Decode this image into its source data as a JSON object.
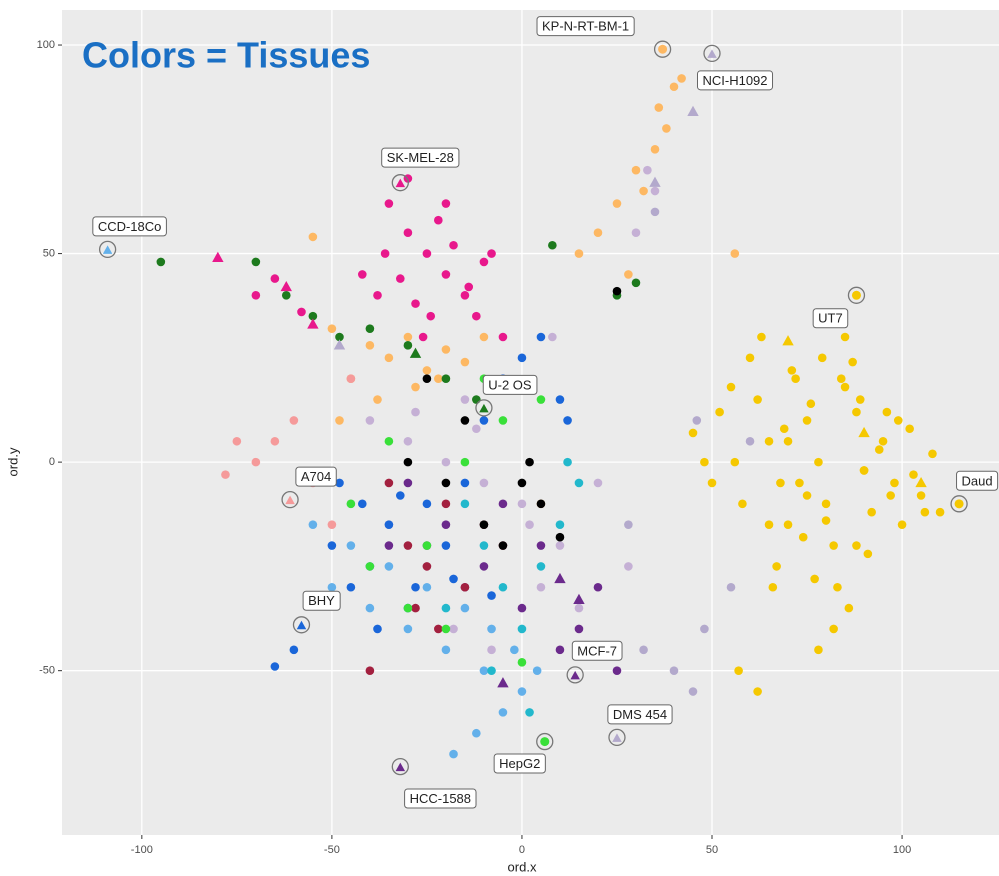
{
  "chart_data": {
    "type": "scatter",
    "title": "Colors = Tissues",
    "title_color": "#1a6fc4",
    "x_label": "ord.x",
    "y_label": "ord.y",
    "xlim": [
      -121,
      125.5
    ],
    "ylim": [
      -89.4,
      108.4
    ],
    "xticks": [
      -100,
      -50,
      0,
      50,
      100
    ],
    "yticks": [
      -50,
      0,
      50,
      100
    ],
    "grid": true,
    "series": [
      {
        "color": "#f5c800",
        "marker": "circle",
        "x": [
          60,
          62,
          65,
          68,
          70,
          72,
          75,
          78,
          80,
          82,
          85,
          88,
          90,
          92,
          95,
          98,
          100,
          102,
          105,
          108,
          110,
          45,
          48,
          50,
          52,
          55,
          58,
          63,
          67,
          71,
          74,
          77,
          79,
          83,
          86,
          89,
          91,
          94,
          97,
          99,
          103,
          106,
          70,
          73,
          76,
          80,
          84,
          88,
          66,
          69,
          82,
          85,
          78,
          87,
          57,
          62,
          90,
          96,
          81,
          75,
          56,
          65
        ],
        "values": [
          25,
          15,
          5,
          -5,
          -15,
          20,
          10,
          0,
          -10,
          -20,
          30,
          12,
          -2,
          -12,
          5,
          -5,
          -15,
          8,
          -8,
          2,
          -12,
          7,
          0,
          -5,
          12,
          18,
          -10,
          30,
          -25,
          22,
          -18,
          -28,
          25,
          -30,
          -35,
          15,
          -22,
          3,
          -8,
          10,
          -3,
          -12,
          5,
          -5,
          14,
          -14,
          20,
          -20,
          -30,
          8,
          -40,
          18,
          -45,
          24,
          -50,
          -55,
          -2,
          12,
          35,
          -8,
          0,
          -15
        ]
      },
      {
        "color": "#e8188c",
        "marker": "circle",
        "x": [
          -35,
          -30,
          -25,
          -20,
          -15,
          -10,
          -32,
          -28,
          -22,
          -18,
          -12,
          -38,
          -42,
          -26,
          -14,
          -8,
          -30,
          -20,
          -65,
          -70,
          -58,
          -5,
          -36,
          -24
        ],
        "values": [
          62,
          55,
          50,
          45,
          40,
          48,
          44,
          38,
          58,
          52,
          35,
          40,
          45,
          30,
          42,
          50,
          68,
          62,
          44,
          40,
          36,
          30,
          50,
          35
        ]
      },
      {
        "color": "#fdb863",
        "marker": "circle",
        "x": [
          -40,
          -35,
          -30,
          -25,
          -20,
          -45,
          -50,
          -28,
          -15,
          -38,
          20,
          25,
          30,
          35,
          38,
          40,
          28,
          32,
          36,
          15,
          -22,
          -55,
          -48,
          -10,
          56,
          42,
          5
        ],
        "values": [
          28,
          25,
          30,
          22,
          27,
          20,
          32,
          18,
          24,
          15,
          55,
          62,
          70,
          75,
          80,
          90,
          45,
          65,
          85,
          50,
          20,
          54,
          10,
          30,
          50,
          92,
          -10
        ]
      },
      {
        "color": "#c5b0d5",
        "marker": "circle",
        "x": [
          -40,
          -30,
          -20,
          -10,
          0,
          10,
          -35,
          -25,
          -15,
          -5,
          5,
          15,
          30,
          35,
          25,
          -45,
          -18,
          -8,
          8,
          20,
          33,
          28,
          -28,
          -12,
          2
        ],
        "values": [
          10,
          5,
          0,
          -5,
          -10,
          -20,
          -15,
          -25,
          15,
          20,
          -30,
          -35,
          55,
          65,
          40,
          -10,
          -40,
          -45,
          30,
          -5,
          70,
          -25,
          12,
          8,
          -15
        ]
      },
      {
        "color": "#1a66d9",
        "marker": "circle",
        "x": [
          -50,
          -45,
          -40,
          -35,
          -30,
          -25,
          -20,
          -15,
          -10,
          -5,
          0,
          5,
          10,
          -48,
          -38,
          -28,
          -18,
          -8,
          -60,
          -65,
          -42,
          -32,
          12
        ],
        "values": [
          -20,
          -30,
          -25,
          -15,
          -35,
          -10,
          -20,
          -5,
          10,
          20,
          25,
          30,
          15,
          -5,
          -40,
          -30,
          -28,
          -32,
          -45,
          -49,
          -10,
          -8,
          10
        ]
      },
      {
        "color": "#63b0ea",
        "marker": "circle",
        "x": [
          -50,
          -40,
          -30,
          -20,
          -10,
          0,
          -45,
          -35,
          -25,
          -15,
          -5,
          -12,
          -18,
          -2,
          -8,
          -55,
          4
        ],
        "values": [
          -30,
          -35,
          -40,
          -45,
          -50,
          -55,
          -20,
          -25,
          -30,
          -35,
          -60,
          -65,
          -70,
          -45,
          -40,
          -15,
          -50
        ]
      },
      {
        "color": "#22b8cc",
        "marker": "circle",
        "x": [
          -15,
          -10,
          -5,
          0,
          5,
          10,
          15,
          -20,
          -8,
          2,
          12
        ],
        "values": [
          -10,
          -20,
          -30,
          -40,
          -25,
          -15,
          -5,
          -35,
          -50,
          -60,
          0
        ]
      },
      {
        "color": "#6b2a8c",
        "marker": "circle",
        "x": [
          -25,
          -15,
          -5,
          5,
          15,
          -30,
          -20,
          -10,
          0,
          10,
          20,
          -35,
          25
        ],
        "values": [
          -20,
          -30,
          -10,
          -20,
          -40,
          -5,
          -15,
          -25,
          -35,
          -45,
          -30,
          -20,
          -50
        ]
      },
      {
        "color": "#a3203f",
        "marker": "circle",
        "x": [
          -30,
          -25,
          -20,
          -15,
          -10,
          -5,
          -35,
          -28,
          -22,
          -40
        ],
        "values": [
          -20,
          -25,
          -10,
          -30,
          -15,
          -20,
          -5,
          -35,
          -40,
          -50
        ]
      },
      {
        "color": "#39e039",
        "marker": "circle",
        "x": [
          -45,
          -35,
          -25,
          -15,
          -5,
          -30,
          -20,
          -10,
          0,
          -40,
          5
        ],
        "values": [
          -10,
          5,
          -20,
          0,
          10,
          -35,
          -40,
          20,
          -48,
          -25,
          15
        ]
      },
      {
        "color": "#1d7a1d",
        "marker": "circle",
        "x": [
          -95,
          -70,
          -62,
          -55,
          -48,
          -40,
          -30,
          -20,
          25,
          30,
          8,
          -12
        ],
        "values": [
          48,
          48,
          40,
          35,
          30,
          32,
          28,
          20,
          40,
          43,
          52,
          15
        ]
      },
      {
        "color": "#000000",
        "marker": "circle",
        "x": [
          -30,
          -20,
          -10,
          0,
          2,
          -5,
          5,
          -15,
          -25,
          25,
          10
        ],
        "values": [
          0,
          -5,
          -15,
          -5,
          0,
          -20,
          -10,
          10,
          20,
          41,
          -18
        ]
      },
      {
        "color": "#f59a9a",
        "marker": "circle",
        "x": [
          -70,
          -65,
          -60,
          -55,
          -75,
          -50,
          -45,
          -78
        ],
        "values": [
          0,
          5,
          10,
          -5,
          5,
          -15,
          20,
          -3
        ]
      },
      {
        "color": "#b3a9cc",
        "marker": "circle",
        "x": [
          45,
          48,
          55,
          35,
          32,
          40,
          28,
          46,
          60
        ],
        "values": [
          -55,
          -40,
          -30,
          60,
          -45,
          -50,
          -15,
          10,
          5
        ]
      },
      {
        "marker": "triangle",
        "colors": [
          "#e8188c",
          "#e8188c",
          "#e8188c",
          "#b3a9cc",
          "#1d7a1d",
          "#b3a9cc",
          "#b3a9cc",
          "#6b2a8c",
          "#6b2a8c",
          "#6b2a8c",
          "#f5c800",
          "#f5c800",
          "#f5c800"
        ],
        "x": [
          -80,
          -62,
          -55,
          -48,
          -28,
          45,
          35,
          10,
          15,
          -5,
          90,
          105,
          70
        ],
        "values": [
          49,
          42,
          33,
          28,
          26,
          84,
          67,
          -28,
          -33,
          -53,
          7,
          -5,
          29
        ]
      }
    ],
    "annotations": [
      {
        "label": "KP-N-RT-BM-1",
        "x": 37,
        "y": 99,
        "color": "#fdb863",
        "marker": "circle"
      },
      {
        "label": "NCI-H1092",
        "x": 50,
        "y": 98,
        "color": "#b3a9cc",
        "marker": "triangle"
      },
      {
        "label": "SK-MEL-28",
        "x": -32,
        "y": 67,
        "color": "#e8188c",
        "marker": "triangle"
      },
      {
        "label": "CCD-18Co",
        "x": -109,
        "y": 51,
        "color": "#63b0ea",
        "marker": "triangle"
      },
      {
        "label": "UT7",
        "x": 88,
        "y": 40,
        "color": "#f5c800",
        "marker": "circle"
      },
      {
        "label": "U-2 OS",
        "x": -10,
        "y": 13,
        "color": "#1d7a1d",
        "marker": "triangle"
      },
      {
        "label": "A704",
        "x": -61,
        "y": -9,
        "color": "#f59a9a",
        "marker": "triangle"
      },
      {
        "label": "Daud",
        "x": 115,
        "y": -10,
        "color": "#f5c800",
        "marker": "circle"
      },
      {
        "label": "BHY",
        "x": -58,
        "y": -39,
        "color": "#1a66d9",
        "marker": "triangle"
      },
      {
        "label": "MCF-7",
        "x": 14,
        "y": -51,
        "color": "#6b2a8c",
        "marker": "triangle"
      },
      {
        "label": "DMS 454",
        "x": 25,
        "y": -66,
        "color": "#b3a9cc",
        "marker": "triangle"
      },
      {
        "label": "HepG2",
        "x": 6,
        "y": -67,
        "color": "#39e039",
        "marker": "circle"
      },
      {
        "label": "HCC-1588",
        "x": -32,
        "y": -73,
        "color": "#6b2a8c",
        "marker": "triangle"
      }
    ]
  }
}
